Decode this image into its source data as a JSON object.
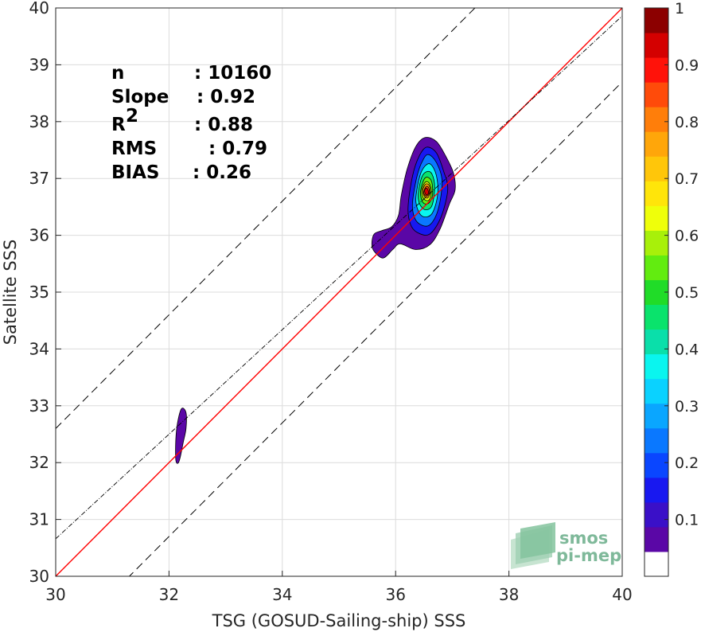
{
  "chart_data": {
    "type": "heatmap",
    "subtype": "density-contour-scatter",
    "xlabel": "TSG (GOSUD-Sailing-ship) SSS",
    "ylabel": "Satellite SSS",
    "xlim": [
      30,
      40
    ],
    "ylim": [
      30,
      40
    ],
    "x_ticks": [
      30,
      32,
      34,
      36,
      38,
      40
    ],
    "y_ticks": [
      30,
      31,
      32,
      33,
      34,
      35,
      36,
      37,
      38,
      39,
      40
    ],
    "x_tick_labels": [
      "30",
      "32",
      "34",
      "36",
      "38",
      "40"
    ],
    "y_tick_labels": [
      "30",
      "31",
      "32",
      "33",
      "34",
      "35",
      "36",
      "37",
      "38",
      "39",
      "40"
    ],
    "grid": true,
    "stats": [
      {
        "label": "n",
        "value": ": 10160"
      },
      {
        "label": "Slope",
        "value": ": 0.92"
      },
      {
        "label": "R",
        "superscript": "2",
        "value": ": 0.88"
      },
      {
        "label": "RMS",
        "value": ": 0.79"
      },
      {
        "label": "BIAS",
        "value": ": 0.26"
      }
    ],
    "reference_lines": [
      {
        "kind": "one-to-one",
        "color": "#ff0000",
        "style": "solid",
        "slope": 1,
        "intercept": 0
      },
      {
        "kind": "regression",
        "color": "#000000",
        "style": "dash-dot",
        "slope": 0.92,
        "intercept": 3.06
      },
      {
        "kind": "plus-offset",
        "color": "#000000",
        "style": "dashed",
        "slope": 1,
        "intercept": 2.6
      },
      {
        "kind": "minus-offset",
        "color": "#000000",
        "style": "dashed",
        "slope": 1,
        "intercept": -1.3
      }
    ],
    "density_clusters": [
      {
        "name": "cluster-main",
        "center": [
          36.55,
          36.78
        ],
        "levels": [
          {
            "level": 0.05,
            "points": [
              [
                35.58,
                35.85
              ],
              [
                35.62,
                36.02
              ],
              [
                35.75,
                36.08
              ],
              [
                35.93,
                36.15
              ],
              [
                36.05,
                36.35
              ],
              [
                36.1,
                36.7
              ],
              [
                36.2,
                37.15
              ],
              [
                36.35,
                37.55
              ],
              [
                36.52,
                37.72
              ],
              [
                36.72,
                37.65
              ],
              [
                36.88,
                37.4
              ],
              [
                37.02,
                37.1
              ],
              [
                37.05,
                36.8
              ],
              [
                36.95,
                36.55
              ],
              [
                36.78,
                36.1
              ],
              [
                36.6,
                35.83
              ],
              [
                36.35,
                35.75
              ],
              [
                36.08,
                35.85
              ],
              [
                35.95,
                35.75
              ],
              [
                35.78,
                35.6
              ],
              [
                35.62,
                35.72
              ]
            ]
          },
          {
            "level": 0.15,
            "points": [
              [
                36.22,
                36.5
              ],
              [
                36.3,
                37.05
              ],
              [
                36.42,
                37.4
              ],
              [
                36.55,
                37.55
              ],
              [
                36.72,
                37.45
              ],
              [
                36.85,
                37.12
              ],
              [
                36.92,
                36.8
              ],
              [
                36.8,
                36.32
              ],
              [
                36.6,
                36.02
              ],
              [
                36.38,
                36.05
              ],
              [
                36.26,
                36.2
              ]
            ]
          },
          {
            "level": 0.25,
            "points": [
              [
                36.3,
                36.6
              ],
              [
                36.38,
                37.05
              ],
              [
                36.48,
                37.32
              ],
              [
                36.58,
                37.42
              ],
              [
                36.72,
                37.28
              ],
              [
                36.82,
                36.95
              ],
              [
                36.75,
                36.45
              ],
              [
                36.6,
                36.18
              ],
              [
                36.42,
                36.2
              ],
              [
                36.32,
                36.35
              ]
            ]
          },
          {
            "level": 0.35,
            "points": [
              [
                36.36,
                36.68
              ],
              [
                36.43,
                37.05
              ],
              [
                36.52,
                37.22
              ],
              [
                36.62,
                37.25
              ],
              [
                36.72,
                37.05
              ],
              [
                36.74,
                36.7
              ],
              [
                36.64,
                36.38
              ],
              [
                36.48,
                36.33
              ],
              [
                36.38,
                36.48
              ]
            ]
          },
          {
            "level": 0.45,
            "points": [
              [
                36.4,
                36.74
              ],
              [
                36.46,
                37.02
              ],
              [
                36.55,
                37.12
              ],
              [
                36.64,
                37.08
              ],
              [
                36.69,
                36.85
              ],
              [
                36.64,
                36.52
              ],
              [
                36.52,
                36.45
              ],
              [
                36.42,
                36.56
              ]
            ]
          },
          {
            "level": 0.55,
            "points": [
              [
                36.44,
                36.76
              ],
              [
                36.5,
                36.98
              ],
              [
                36.57,
                37.02
              ],
              [
                36.64,
                36.93
              ],
              [
                36.65,
                36.7
              ],
              [
                36.58,
                36.56
              ],
              [
                36.48,
                36.58
              ]
            ]
          },
          {
            "level": 0.65,
            "points": [
              [
                36.46,
                36.78
              ],
              [
                36.52,
                36.93
              ],
              [
                36.59,
                36.92
              ],
              [
                36.63,
                36.78
              ],
              [
                36.59,
                36.62
              ],
              [
                36.5,
                36.64
              ]
            ]
          },
          {
            "level": 0.75,
            "points": [
              [
                36.48,
                36.79
              ],
              [
                36.53,
                36.9
              ],
              [
                36.59,
                36.88
              ],
              [
                36.61,
                36.76
              ],
              [
                36.57,
                36.66
              ],
              [
                36.51,
                36.68
              ]
            ]
          },
          {
            "level": 0.85,
            "points": [
              [
                36.5,
                36.78
              ],
              [
                36.54,
                36.86
              ],
              [
                36.58,
                36.84
              ],
              [
                36.6,
                36.75
              ],
              [
                36.56,
                36.69
              ],
              [
                36.51,
                36.71
              ]
            ]
          },
          {
            "level": 0.95,
            "points": [
              [
                36.51,
                36.78
              ],
              [
                36.54,
                36.83
              ],
              [
                36.57,
                36.8
              ],
              [
                36.58,
                36.74
              ],
              [
                36.54,
                36.71
              ]
            ]
          }
        ]
      },
      {
        "name": "cluster-low",
        "center": [
          32.2,
          32.5
        ],
        "levels": [
          {
            "level": 0.08,
            "points": [
              [
                32.12,
                32.05
              ],
              [
                32.12,
                32.4
              ],
              [
                32.15,
                32.7
              ],
              [
                32.22,
                32.95
              ],
              [
                32.3,
                32.88
              ],
              [
                32.3,
                32.6
              ],
              [
                32.25,
                32.35
              ],
              [
                32.2,
                32.1
              ],
              [
                32.16,
                31.99
              ]
            ]
          }
        ]
      }
    ],
    "colorbar": {
      "label": "",
      "min": 0,
      "max": 1,
      "tick_values": [
        0.1,
        0.2,
        0.3,
        0.4,
        0.5,
        0.6,
        0.7,
        0.8,
        0.9,
        1
      ],
      "tick_labels": [
        "0.1",
        "0.2",
        "0.3",
        "0.4",
        "0.5",
        "0.6",
        "0.7",
        "0.8",
        "0.9",
        "1"
      ],
      "colors": [
        "#ffffff",
        "#5a07a6",
        "#3a10c8",
        "#1818f0",
        "#0a46ff",
        "#0a78ff",
        "#0aa6ff",
        "#0ad2ff",
        "#0af5ef",
        "#0adfaa",
        "#0ae36c",
        "#20dc28",
        "#62ec10",
        "#a8f00a",
        "#efff0a",
        "#ffe50a",
        "#ffc60a",
        "#ffa60a",
        "#ff7e0a",
        "#ff4b0a",
        "#ff120a",
        "#d40000",
        "#8c0000"
      ]
    },
    "logo": {
      "line1": "smos",
      "line2": "pi-mep"
    }
  }
}
